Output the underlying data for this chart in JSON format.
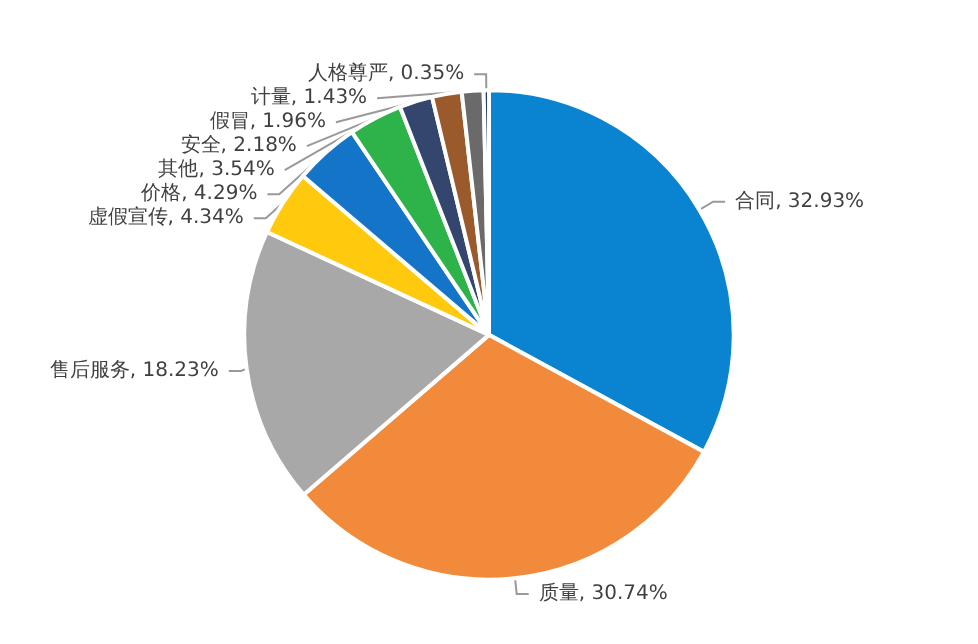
{
  "chart_data": {
    "type": "pie",
    "categories": [
      "合同",
      "质量",
      "售后服务",
      "虚假宣传",
      "价格",
      "其他",
      "安全",
      "假冒",
      "计量",
      "人格尊严"
    ],
    "values": [
      32.93,
      30.74,
      18.23,
      4.34,
      4.29,
      3.54,
      2.18,
      1.96,
      1.43,
      0.35
    ],
    "value_labels": [
      "32.93%",
      "30.74%",
      "18.23%",
      "4.34%",
      "4.29%",
      "3.54%",
      "2.18%",
      "1.96%",
      "1.43%",
      "0.35%"
    ],
    "colors": [
      "#0a84d0",
      "#f28a3c",
      "#a8a8a8",
      "#ffc90e",
      "#1474c8",
      "#2db34a",
      "#34466e",
      "#9a5a2c",
      "#6a6a6a",
      "#1c3c78"
    ],
    "legend": false
  }
}
